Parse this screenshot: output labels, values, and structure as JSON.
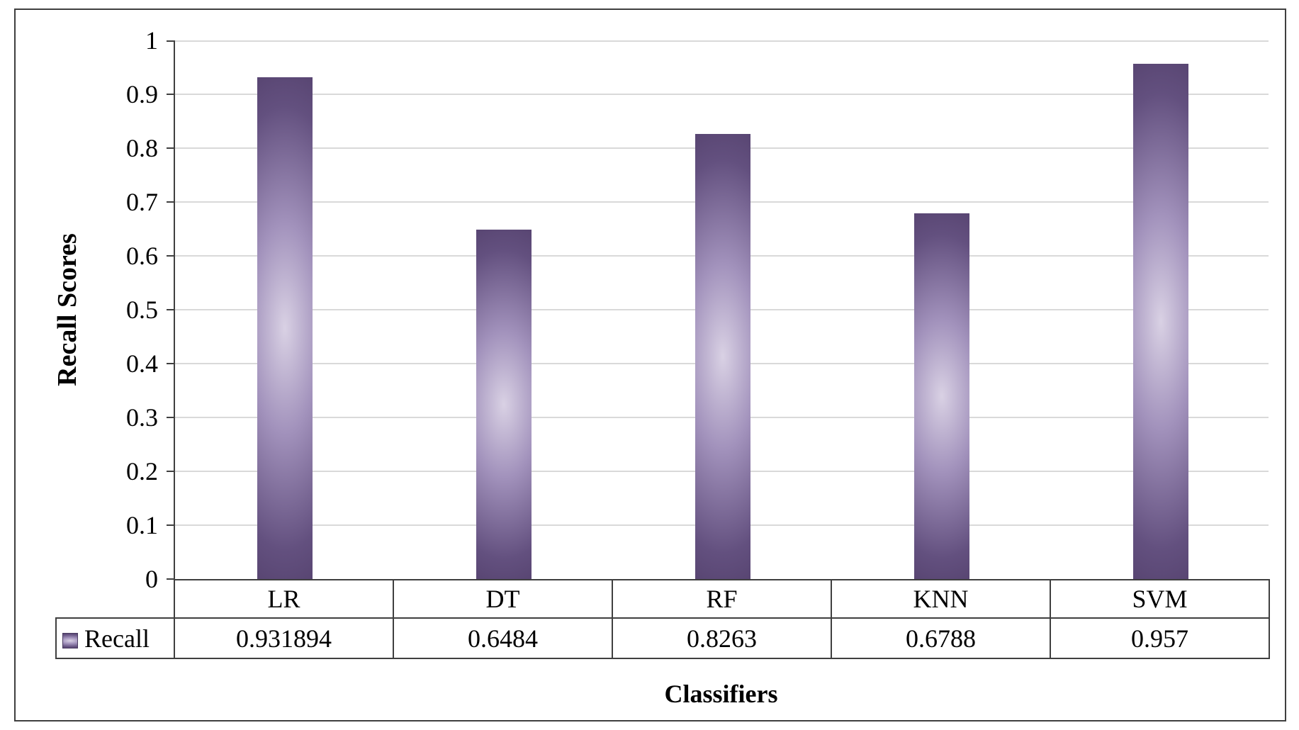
{
  "page": {
    "background": "#ffffff",
    "frame_border_color": "#3f3f3f"
  },
  "chart_data": {
    "type": "bar",
    "title": "",
    "xlabel": "Classifiers",
    "ylabel": "Recall Scores",
    "categories": [
      "LR",
      "DT",
      "RF",
      "KNN",
      "SVM"
    ],
    "series": [
      {
        "name": "Recall",
        "values": [
          0.931894,
          0.6484,
          0.8263,
          0.6788,
          0.957
        ],
        "value_labels": [
          "0.931894",
          "0.6484",
          "0.8263",
          "0.6788",
          "0.957"
        ]
      }
    ],
    "ylim": [
      0,
      1
    ],
    "ytick_step": 0.1,
    "yticks": [
      "0",
      "0.1",
      "0.2",
      "0.3",
      "0.4",
      "0.5",
      "0.6",
      "0.7",
      "0.8",
      "0.9",
      "1"
    ],
    "grid": true,
    "legend_position": "table-row-left",
    "colors": {
      "bar_light": "#d9d1e4",
      "bar_mid": "#a292bc",
      "bar_dark": "#63507f",
      "bar_edge": "#594673",
      "grid": "#d9d9d9",
      "axis": "#3f3f3f",
      "table_border": "#3f3f3f",
      "text": "#000000"
    }
  }
}
